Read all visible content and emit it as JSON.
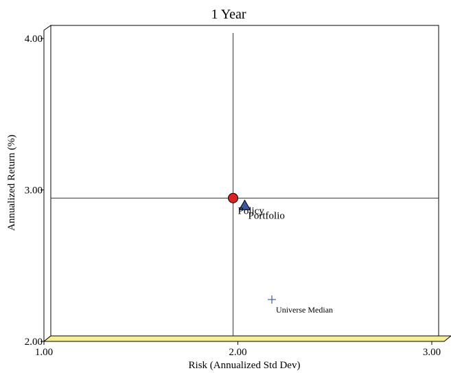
{
  "chart_data": {
    "type": "scatter",
    "title": "1 Year",
    "xlabel": "Risk (Annualized Std Dev)",
    "ylabel": "Annualized Return (%)",
    "xlim": [
      1.0,
      3.0
    ],
    "ylim": [
      2.0,
      4.0
    ],
    "x_ticks": [
      "1.00",
      "2.00",
      "3.00"
    ],
    "y_ticks": [
      "2.00",
      "3.00",
      "4.00"
    ],
    "grid": false,
    "legend": "none",
    "crosshair": {
      "x": 1.94,
      "y": 2.91
    },
    "points": [
      {
        "name": "Portfolio",
        "x": 1.94,
        "y": 2.91,
        "marker": "circle",
        "color": "#e0201e"
      },
      {
        "name": "Policy",
        "x": 2.0,
        "y": 2.86,
        "marker": "triangle",
        "color": "#3a57a6"
      },
      {
        "name": "Universe Median",
        "x": 2.14,
        "y": 2.24,
        "marker": "plus",
        "color": "#3a57a6"
      }
    ],
    "floor_color": "#f7ef8e"
  }
}
